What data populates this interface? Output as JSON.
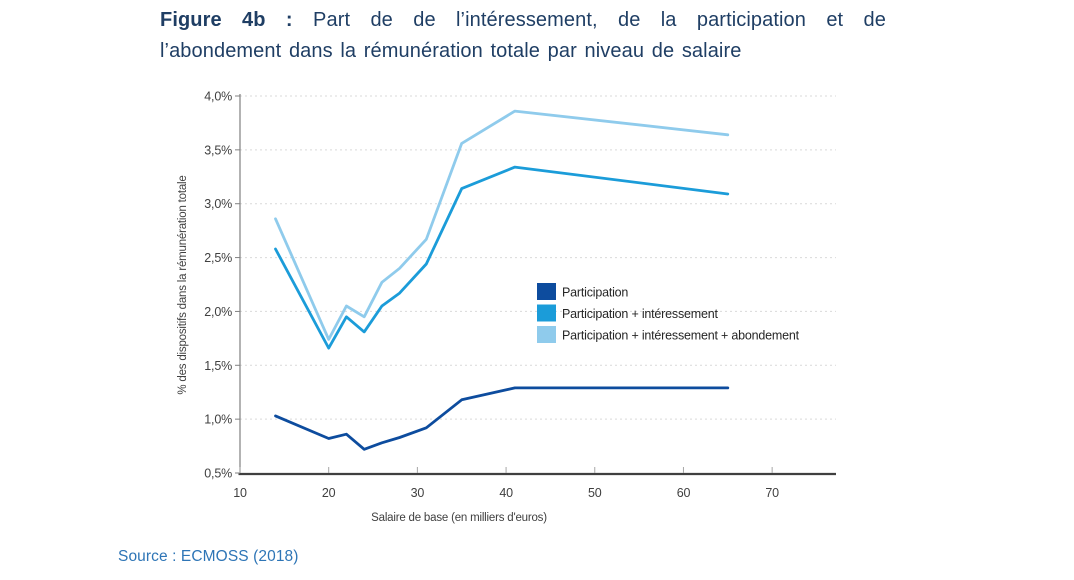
{
  "title": {
    "prefix": "Figure 4b :",
    "line1": "Part de de l’intéressement, de la participation et de",
    "line2": "l’abondement dans la rémunération totale par niveau de salaire"
  },
  "source_note": "Source : ECMOSS (2018)",
  "colors": {
    "title_text": "#1F3E64",
    "source_text": "#2E75B6",
    "grid": "#D9D9D9",
    "x_axis": "#3F3F3F",
    "y_axis": "#808080",
    "x_tick": "#A6A6A6",
    "tick_text": "#404040",
    "legend_text": "#262626"
  },
  "chart_data": {
    "type": "line",
    "xlabel": "Salaire de base (en milliers d'euros)",
    "ylabel": "% des dispositifs dans la rémunération totale",
    "x": [
      14,
      20,
      22,
      24,
      26,
      28,
      31,
      35,
      41,
      65
    ],
    "series": [
      {
        "name": "Participation",
        "color": "#0D4C9E",
        "values": [
          1.03,
          0.82,
          0.86,
          0.72,
          0.78,
          0.83,
          0.92,
          1.18,
          1.29,
          1.29
        ]
      },
      {
        "name": "Participation + intéressement",
        "color": "#1B9CD9",
        "values": [
          2.58,
          1.66,
          1.95,
          1.81,
          2.05,
          2.17,
          2.44,
          3.14,
          3.34,
          3.09
        ]
      },
      {
        "name": "Participation + intéressement + abondement",
        "color": "#8FCBEC",
        "values": [
          2.86,
          1.74,
          2.05,
          1.95,
          2.27,
          2.4,
          2.67,
          3.56,
          3.86,
          3.64
        ]
      }
    ],
    "x_ticks": [
      10,
      20,
      30,
      40,
      50,
      60,
      70
    ],
    "y_ticks": [
      {
        "v": 0.5,
        "label": "0,5%"
      },
      {
        "v": 1.0,
        "label": "1,0%"
      },
      {
        "v": 1.5,
        "label": "1,5%"
      },
      {
        "v": 2.0,
        "label": "2,0%"
      },
      {
        "v": 2.5,
        "label": "2,5%"
      },
      {
        "v": 3.0,
        "label": "3,0%"
      },
      {
        "v": 3.5,
        "label": "3,5%"
      },
      {
        "v": 4.0,
        "label": "4,0%"
      }
    ],
    "xlim": [
      10,
      77.2
    ],
    "ylim": [
      0.5,
      4.0
    ],
    "grid": "horizontal dashed",
    "legend_position": "inside right"
  }
}
